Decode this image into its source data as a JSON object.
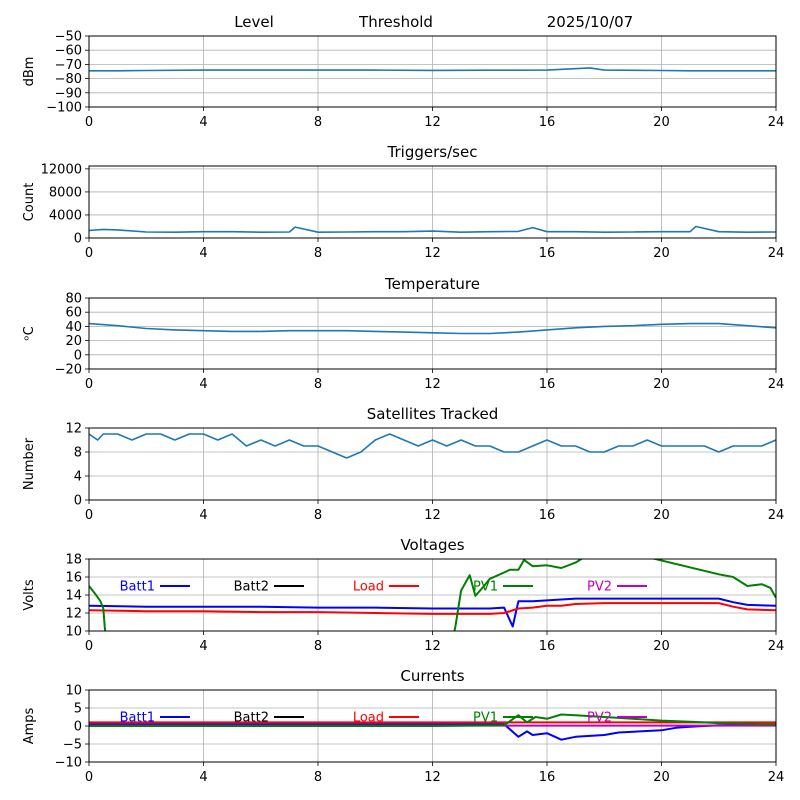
{
  "header": {
    "level": "Level",
    "threshold": "Threshold",
    "date": "2025/10/07"
  },
  "colors": {
    "series_default": "#1f77b4",
    "grid": "#b0b0b0",
    "batt1": "#0000ff",
    "batt2": "#000000",
    "load": "#ff0000",
    "pv1": "#008000",
    "pv2": "#c000c0"
  },
  "chart_data": [
    {
      "type": "line",
      "title": "",
      "ylabel": "dBm",
      "xlim": [
        0,
        24
      ],
      "ylim": [
        -100,
        -50
      ],
      "xticks": [
        "0",
        "4",
        "8",
        "12",
        "16",
        "20",
        "24"
      ],
      "yticks": [
        "−50",
        "−60",
        "−70",
        "−80",
        "−90",
        "−100"
      ],
      "ytick_values": [
        -50,
        -60,
        -70,
        -80,
        -90,
        -100
      ],
      "grid": true,
      "series": [
        {
          "values_x": [
            0,
            1,
            2,
            4,
            6,
            8,
            10,
            12,
            14,
            16,
            17.5,
            18,
            20,
            21,
            24
          ],
          "values_y": [
            -74.5,
            -74.5,
            -74.3,
            -74.0,
            -74.0,
            -74.0,
            -74.0,
            -74.2,
            -74.1,
            -74.0,
            -72.5,
            -74.0,
            -74.3,
            -74.5,
            -74.5
          ]
        }
      ]
    },
    {
      "type": "line",
      "title": "Triggers/sec",
      "ylabel": "Count",
      "xlim": [
        0,
        24
      ],
      "ylim": [
        0,
        12500
      ],
      "xticks": [
        "0",
        "4",
        "8",
        "12",
        "16",
        "20",
        "24"
      ],
      "yticks": [
        "0",
        "4000",
        "8000",
        "12000"
      ],
      "ytick_values": [
        0,
        4000,
        8000,
        12000
      ],
      "grid": true,
      "series": [
        {
          "values_x": [
            0,
            0.5,
            1,
            2,
            3,
            4,
            5,
            6,
            7,
            7.2,
            8,
            9,
            10,
            11,
            12,
            13,
            14,
            15,
            15.5,
            16,
            17,
            18,
            19,
            20,
            21,
            21.2,
            22,
            23,
            24
          ],
          "values_y": [
            1300,
            1500,
            1400,
            1050,
            1000,
            1100,
            1100,
            1000,
            1050,
            1900,
            1000,
            1050,
            1100,
            1100,
            1200,
            1000,
            1100,
            1150,
            1800,
            1100,
            1100,
            1000,
            1050,
            1100,
            1100,
            2000,
            1100,
            1000,
            1050
          ]
        }
      ]
    },
    {
      "type": "line",
      "title": "Temperature",
      "ylabel": "ᵒC",
      "xlim": [
        0,
        24
      ],
      "ylim": [
        -20,
        80
      ],
      "xticks": [
        "0",
        "4",
        "8",
        "12",
        "16",
        "20",
        "24"
      ],
      "yticks": [
        "80",
        "60",
        "40",
        "20",
        "0",
        "−20"
      ],
      "ytick_values": [
        80,
        60,
        40,
        20,
        0,
        -20
      ],
      "grid": true,
      "series": [
        {
          "values_x": [
            0,
            1,
            2,
            3,
            4,
            5,
            6,
            7,
            8,
            9,
            10,
            11,
            12,
            13,
            14,
            15,
            16,
            17,
            18,
            19,
            20,
            21,
            22,
            23,
            24
          ],
          "values_y": [
            44,
            41,
            37,
            35,
            34,
            33,
            33,
            34,
            34,
            34,
            33,
            32,
            31,
            30,
            30,
            32,
            35,
            38,
            40,
            41,
            43,
            44,
            44,
            41,
            38
          ]
        }
      ]
    },
    {
      "type": "line",
      "title": "Satellites Tracked",
      "ylabel": "Number",
      "xlim": [
        0,
        24
      ],
      "ylim": [
        0,
        12
      ],
      "xticks": [
        "0",
        "4",
        "8",
        "12",
        "16",
        "20",
        "24"
      ],
      "yticks": [
        "0",
        "4",
        "8",
        "12"
      ],
      "ytick_values": [
        0,
        4,
        8,
        12
      ],
      "grid": true,
      "series": [
        {
          "values_x": [
            0,
            0.3,
            0.5,
            1,
            1.5,
            2,
            2.5,
            3,
            3.5,
            4,
            4.5,
            5,
            5.5,
            6,
            6.5,
            7,
            7.5,
            8,
            8.5,
            9,
            9.5,
            10,
            10.5,
            11,
            11.5,
            12,
            12.5,
            13,
            13.5,
            14,
            14.5,
            15,
            15.5,
            16,
            16.5,
            17,
            17.5,
            18,
            18.5,
            19,
            19.5,
            20,
            20.5,
            21,
            21.5,
            22,
            22.5,
            23,
            23.5,
            24
          ],
          "values_y": [
            11,
            10,
            11,
            11,
            10,
            11,
            11,
            10,
            11,
            11,
            10,
            11,
            9,
            10,
            9,
            10,
            9,
            9,
            8,
            7,
            8,
            10,
            11,
            10,
            9,
            10,
            9,
            10,
            9,
            9,
            8,
            8,
            9,
            10,
            9,
            9,
            8,
            8,
            9,
            9,
            10,
            9,
            9,
            9,
            9,
            8,
            9,
            9,
            9,
            10
          ]
        }
      ]
    },
    {
      "type": "line",
      "title": "Voltages",
      "ylabel": "Volts",
      "xlim": [
        0,
        24
      ],
      "ylim": [
        10,
        18
      ],
      "xticks": [
        "0",
        "4",
        "8",
        "12",
        "16",
        "20",
        "24"
      ],
      "yticks": [
        "10",
        "12",
        "14",
        "16",
        "18"
      ],
      "ytick_values": [
        10,
        12,
        14,
        16,
        18
      ],
      "grid": true,
      "legend": [
        "Batt1",
        "Batt2",
        "Load",
        "PV1",
        "PV2"
      ],
      "series": [
        {
          "name": "Batt1",
          "values_x": [
            0,
            2,
            4,
            6,
            8,
            10,
            12,
            14,
            14.5,
            14.8,
            15,
            15.5,
            16,
            16.5,
            17,
            18,
            20,
            22,
            22.5,
            23,
            24
          ],
          "values_y": [
            12.8,
            12.7,
            12.7,
            12.7,
            12.6,
            12.6,
            12.5,
            12.5,
            12.6,
            10.5,
            13.3,
            13.3,
            13.4,
            13.5,
            13.6,
            13.6,
            13.6,
            13.6,
            13.2,
            12.9,
            12.8
          ]
        },
        {
          "name": "Load",
          "values_x": [
            0,
            2,
            4,
            6,
            8,
            10,
            12,
            14,
            14.5,
            15,
            15.5,
            16,
            16.5,
            17,
            18,
            20,
            22,
            22.5,
            23,
            24
          ],
          "values_y": [
            12.3,
            12.2,
            12.2,
            12.1,
            12.1,
            12.0,
            11.9,
            11.9,
            12.0,
            12.5,
            12.6,
            12.8,
            12.8,
            13.0,
            13.1,
            13.1,
            13.1,
            12.7,
            12.4,
            12.3
          ]
        },
        {
          "name": "PV1",
          "values_x": [
            0,
            0.2,
            0.4,
            0.5,
            0.55,
            0.6,
            12.7,
            12.8,
            13,
            13.3,
            13.5,
            13.8,
            14,
            14.5,
            14.7,
            15,
            15.2,
            15.5,
            16,
            16.5,
            17,
            17.5,
            18,
            18.5,
            19,
            22,
            22.5,
            23,
            23.5,
            23.8,
            24
          ],
          "values_y": [
            15.0,
            14.2,
            13.3,
            12.5,
            10.5,
            9.0,
            9.0,
            10.5,
            14.5,
            16.2,
            13.9,
            15.0,
            15.8,
            16.5,
            16.8,
            16.8,
            17.9,
            17.2,
            17.3,
            17.0,
            17.6,
            18.6,
            18.6,
            18.6,
            18.6,
            16.3,
            16.0,
            15.0,
            15.2,
            14.8,
            13.7
          ]
        }
      ]
    },
    {
      "type": "line",
      "title": "Currents",
      "ylabel": "Amps",
      "xlim": [
        0,
        24
      ],
      "ylim": [
        -10,
        10
      ],
      "xticks": [
        "0",
        "4",
        "8",
        "12",
        "16",
        "20",
        "24"
      ],
      "yticks": [
        "−10",
        "−5",
        "0",
        "5",
        "10"
      ],
      "ytick_values": [
        -10,
        -5,
        0,
        5,
        10
      ],
      "grid": true,
      "legend": [
        "Batt1",
        "Batt2",
        "Load",
        "PV1",
        "PV2"
      ],
      "series": [
        {
          "name": "Batt1",
          "values_x": [
            0,
            4,
            8,
            12,
            14.5,
            15,
            15.3,
            15.5,
            16,
            16.5,
            17,
            18,
            18.5,
            20,
            20.5,
            21,
            22,
            23,
            24
          ],
          "values_y": [
            0.5,
            0.5,
            0.5,
            0.5,
            0.5,
            -3.0,
            -1.5,
            -2.5,
            -2.0,
            -3.8,
            -3.0,
            -2.5,
            -1.8,
            -1.2,
            -0.5,
            -0.2,
            0.2,
            0.4,
            0.5
          ]
        },
        {
          "name": "Load",
          "values_x": [
            0,
            4,
            8,
            12,
            16,
            20,
            24
          ],
          "values_y": [
            1.0,
            1.0,
            1.0,
            1.0,
            1.0,
            1.0,
            1.0
          ]
        },
        {
          "name": "PV2",
          "values_x": [
            0,
            4,
            8,
            12,
            16,
            20,
            24
          ],
          "values_y": [
            0.1,
            0.1,
            0.1,
            0.1,
            0.1,
            0.1,
            0.1
          ]
        },
        {
          "name": "PV1",
          "values_x": [
            0,
            12,
            14.5,
            15,
            15.3,
            15.6,
            16,
            16.5,
            17,
            18,
            19,
            20,
            21,
            22,
            23,
            24
          ],
          "values_y": [
            0.0,
            0.0,
            0.2,
            3.0,
            1.0,
            2.5,
            2.0,
            3.2,
            3.0,
            2.5,
            2.0,
            1.5,
            1.2,
            0.8,
            0.6,
            0.4
          ]
        }
      ]
    }
  ]
}
